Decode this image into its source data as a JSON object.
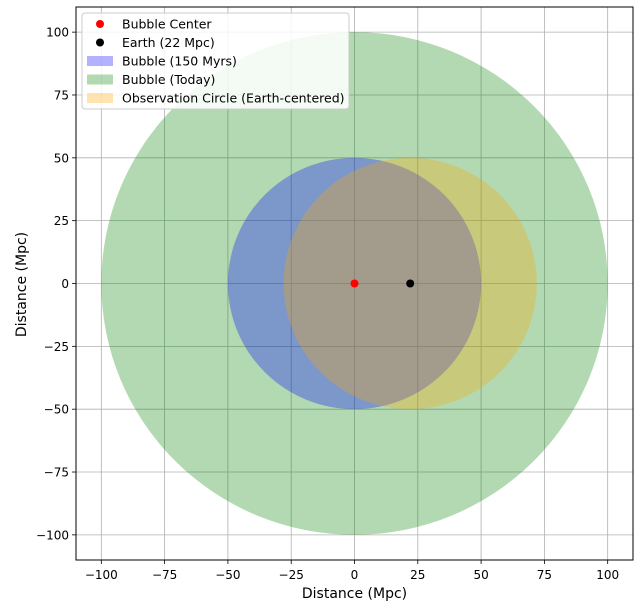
{
  "chart_data": {
    "type": "scatter",
    "xlabel": "Distance (Mpc)",
    "ylabel": "Distance (Mpc)",
    "xlim": [
      -110,
      110
    ],
    "ylim": [
      -110,
      110
    ],
    "xticks": [
      -100,
      -75,
      -50,
      -25,
      0,
      25,
      50,
      75,
      100
    ],
    "yticks": [
      -100,
      -75,
      -50,
      -25,
      0,
      25,
      50,
      75,
      100
    ],
    "tick_labels": [
      "−100",
      "−75",
      "−50",
      "−25",
      "0",
      "25",
      "50",
      "75",
      "100"
    ],
    "grid": true,
    "legend_position": "top-left",
    "circles": [
      {
        "name": "Bubble (Today)",
        "center": [
          0,
          0
        ],
        "radius": 100,
        "color": "#008000",
        "alpha": 0.3
      },
      {
        "name": "Bubble (150 Myrs)",
        "center": [
          0,
          0
        ],
        "radius": 50,
        "color": "#0000ff",
        "alpha": 0.3
      },
      {
        "name": "Observation Circle (Earth-centered)",
        "center": [
          22,
          0
        ],
        "radius": 50,
        "color": "#ffa500",
        "alpha": 0.3
      }
    ],
    "points": [
      {
        "name": "Bubble Center",
        "x": 0,
        "y": 0,
        "color": "#ff0000"
      },
      {
        "name": "Earth (22 Mpc)",
        "x": 22,
        "y": 0,
        "color": "#000000"
      }
    ],
    "legend": [
      {
        "label": "Bubble Center",
        "kind": "marker",
        "color": "#ff0000"
      },
      {
        "label": "Earth (22 Mpc)",
        "kind": "marker",
        "color": "#000000"
      },
      {
        "label": "Bubble (150 Myrs)",
        "kind": "patch",
        "color": "#0000ff",
        "alpha": 0.3
      },
      {
        "label": "Bubble (Today)",
        "kind": "patch",
        "color": "#008000",
        "alpha": 0.3
      },
      {
        "label": "Observation Circle (Earth-centered)",
        "kind": "patch",
        "color": "#ffa500",
        "alpha": 0.3
      }
    ]
  }
}
